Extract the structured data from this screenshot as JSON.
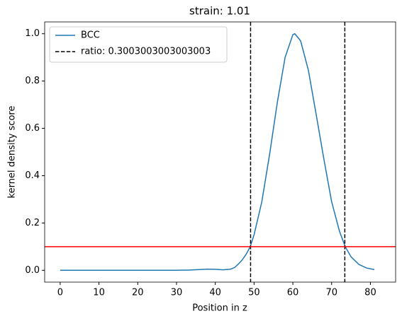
{
  "chart_data": {
    "type": "line",
    "title": "strain: 1.01",
    "x_label": "Position in z",
    "y_label": "kernel density score",
    "x": [
      0,
      5,
      10,
      15,
      20,
      25,
      30,
      33,
      36,
      38,
      40,
      42,
      44,
      45,
      46,
      47,
      48,
      49,
      50,
      52,
      54,
      56,
      58,
      60,
      60.5,
      62,
      64,
      66,
      68,
      70,
      72,
      73.5,
      75,
      77,
      79,
      81
    ],
    "series": [
      {
        "name": "BCC",
        "color": "#1f77b4",
        "values": [
          0,
          0,
          0,
          0,
          0,
          0,
          0,
          0.001,
          0.003,
          0.005,
          0.004,
          0.002,
          0.005,
          0.012,
          0.027,
          0.045,
          0.069,
          0.1,
          0.15,
          0.29,
          0.49,
          0.71,
          0.9,
          0.996,
          1.0,
          0.97,
          0.846,
          0.66,
          0.47,
          0.29,
          0.166,
          0.1,
          0.057,
          0.025,
          0.0095,
          0.003
        ]
      }
    ],
    "vlines": {
      "name": "ratio: 0.3003003003003003",
      "color": "#000000",
      "values": [
        49.1,
        73.4
      ]
    },
    "hline": {
      "value": 0.1,
      "color": "#ff0000"
    },
    "xlim": [
      -4,
      86.5
    ],
    "ylim": [
      -0.05,
      1.05
    ],
    "xticks": [
      0,
      10,
      20,
      30,
      40,
      50,
      60,
      70,
      80
    ],
    "yticks": [
      {
        "value": 0,
        "label": "0.0"
      },
      {
        "value": 0.2,
        "label": "0.2"
      },
      {
        "value": 0.4,
        "label": "0.4"
      },
      {
        "value": 0.6,
        "label": "0.6"
      },
      {
        "value": 0.8,
        "label": "0.8"
      },
      {
        "value": 1.0,
        "label": "1.0"
      }
    ],
    "legend": "upper left"
  }
}
